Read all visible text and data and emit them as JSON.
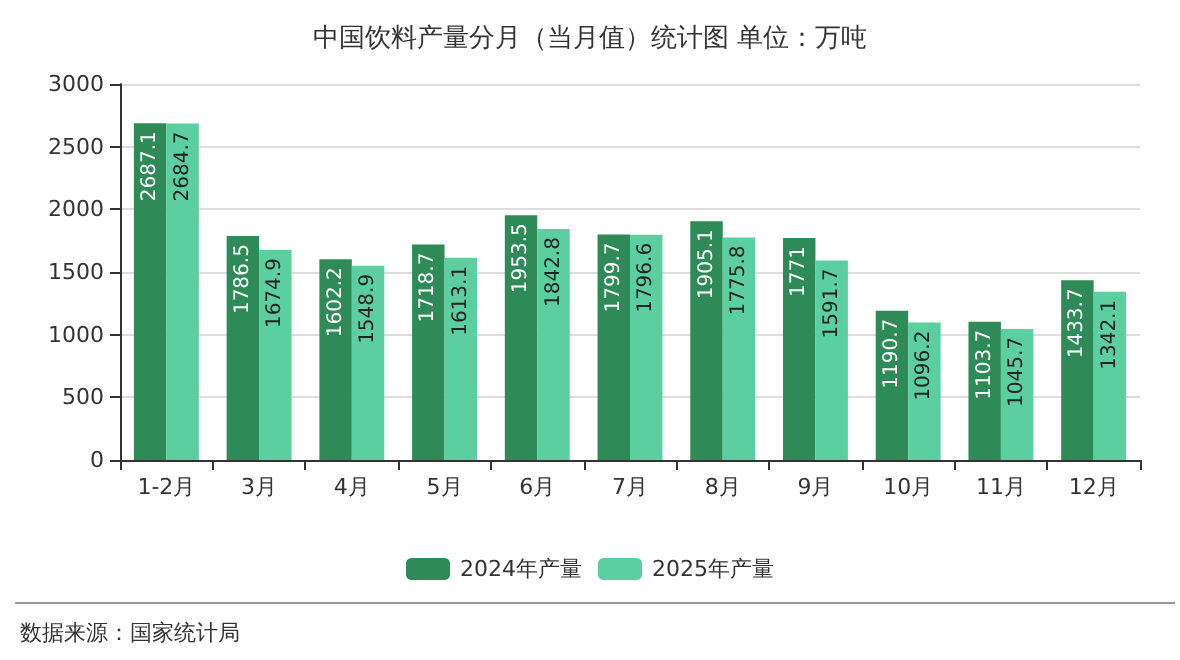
{
  "chart_data": {
    "type": "bar",
    "title": "中国饮料产量分月（当月值）统计图 单位：万吨",
    "categories": [
      "1-2月",
      "3月",
      "4月",
      "5月",
      "6月",
      "7月",
      "8月",
      "9月",
      "10月",
      "11月",
      "12月"
    ],
    "series": [
      {
        "name": "2024年产量",
        "color": "#2e8b57",
        "values": [
          2687.1,
          1786.5,
          1602.2,
          1718.7,
          1953.5,
          1799.7,
          1905.1,
          1771,
          1190.7,
          1103.7,
          1433.7
        ]
      },
      {
        "name": "2025年产量",
        "color": "#5ccfa0",
        "values": [
          2684.7,
          1674.9,
          1548.9,
          1613.1,
          1842.8,
          1796.6,
          1775.8,
          1591.7,
          1096.2,
          1045.7,
          1342.1
        ]
      }
    ],
    "ylim": [
      0,
      3000
    ],
    "yticks": [
      0,
      500,
      1000,
      1500,
      2000,
      2500,
      3000
    ],
    "grid": "y",
    "legend": "bottom",
    "data_labels": true,
    "annotations": [
      "数据来源：国家统计局"
    ]
  }
}
